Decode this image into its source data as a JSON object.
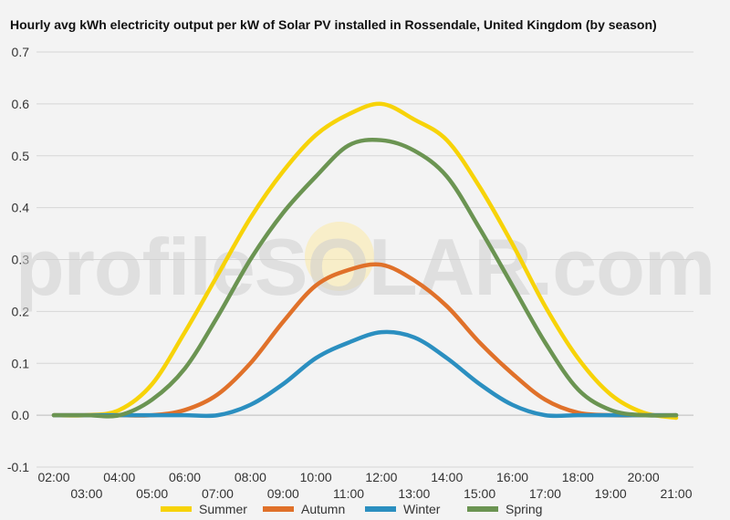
{
  "chart_data": {
    "type": "line",
    "title": "Hourly avg kWh electricity output per kW of Solar PV installed in Rossendale, United Kingdom (by season)",
    "watermark": "profileSOLAR.com",
    "xlabel": "",
    "ylabel": "",
    "ylim": [
      -0.1,
      0.7
    ],
    "yticks": [
      "-0.1",
      "0.0",
      "0.1",
      "0.2",
      "0.3",
      "0.4",
      "0.5",
      "0.6",
      "0.7"
    ],
    "grid": true,
    "legend_position": "bottom",
    "categories": [
      "02:00",
      "03:00",
      "04:00",
      "05:00",
      "06:00",
      "07:00",
      "08:00",
      "09:00",
      "10:00",
      "11:00",
      "12:00",
      "13:00",
      "14:00",
      "15:00",
      "16:00",
      "17:00",
      "18:00",
      "19:00",
      "20:00",
      "21:00"
    ],
    "series": [
      {
        "name": "Summer",
        "color": "#f7d308",
        "values": [
          0,
          0,
          0.01,
          0.06,
          0.16,
          0.27,
          0.38,
          0.47,
          0.54,
          0.58,
          0.6,
          0.57,
          0.53,
          0.44,
          0.33,
          0.21,
          0.11,
          0.04,
          0.005,
          -0.005
        ]
      },
      {
        "name": "Autumn",
        "color": "#e0712a",
        "values": [
          0,
          0,
          0,
          0,
          0.01,
          0.04,
          0.1,
          0.18,
          0.25,
          0.28,
          0.29,
          0.26,
          0.21,
          0.14,
          0.08,
          0.03,
          0.005,
          0,
          0,
          0
        ]
      },
      {
        "name": "Winter",
        "color": "#2b8fc0",
        "values": [
          0,
          0,
          0,
          0,
          0,
          0,
          0.02,
          0.06,
          0.11,
          0.14,
          0.16,
          0.15,
          0.11,
          0.06,
          0.02,
          0,
          0,
          0,
          0,
          0
        ]
      },
      {
        "name": "Spring",
        "color": "#6b9452",
        "values": [
          0,
          0,
          0,
          0.03,
          0.09,
          0.19,
          0.3,
          0.39,
          0.46,
          0.52,
          0.53,
          0.51,
          0.46,
          0.36,
          0.25,
          0.14,
          0.05,
          0.01,
          0,
          0
        ]
      }
    ]
  }
}
